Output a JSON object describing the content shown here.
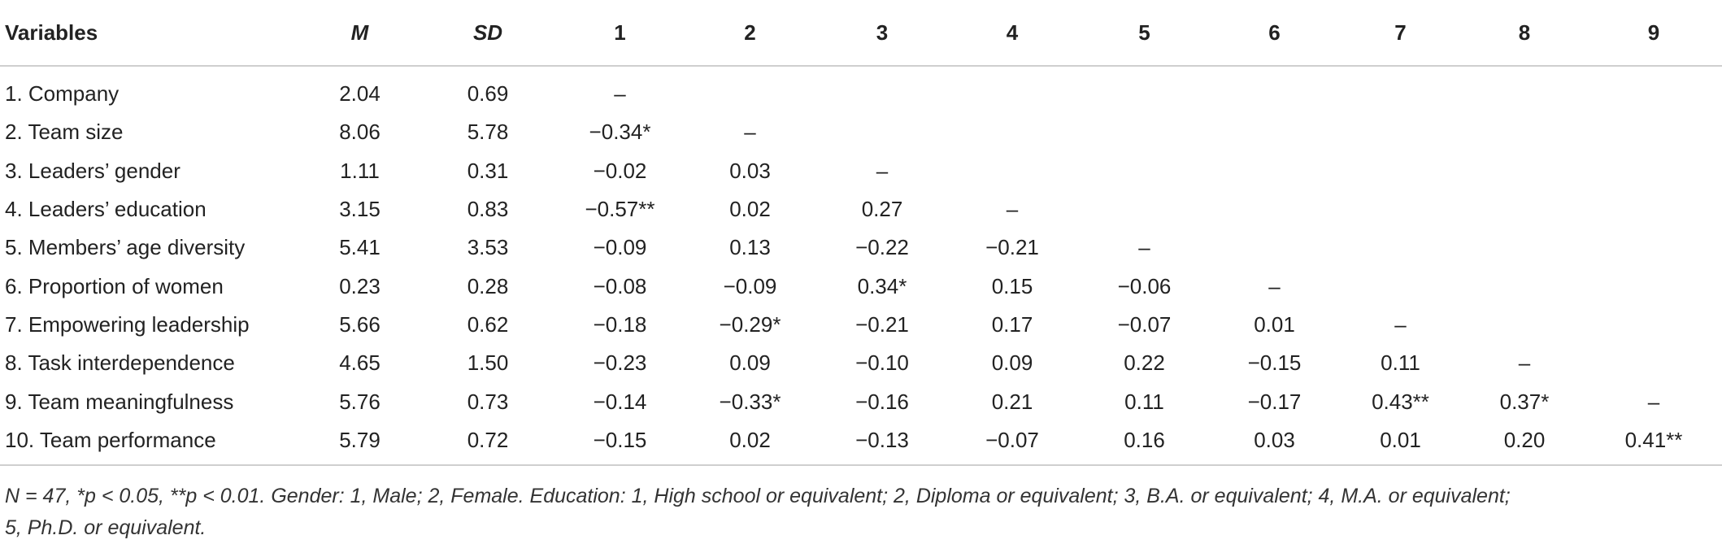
{
  "table": {
    "headers": [
      "Variables",
      "M",
      "SD",
      "1",
      "2",
      "3",
      "4",
      "5",
      "6",
      "7",
      "8",
      "9"
    ],
    "rows": [
      [
        "1. Company",
        "2.04",
        "0.69",
        "–",
        "",
        "",
        "",
        "",
        "",
        "",
        "",
        ""
      ],
      [
        "2. Team size",
        "8.06",
        "5.78",
        "−0.34*",
        "–",
        "",
        "",
        "",
        "",
        "",
        "",
        ""
      ],
      [
        "3. Leaders’ gender",
        "1.11",
        "0.31",
        "−0.02",
        "0.03",
        "–",
        "",
        "",
        "",
        "",
        "",
        ""
      ],
      [
        "4. Leaders’ education",
        "3.15",
        "0.83",
        "−0.57**",
        "0.02",
        "0.27",
        "–",
        "",
        "",
        "",
        "",
        ""
      ],
      [
        "5. Members’ age diversity",
        "5.41",
        "3.53",
        "−0.09",
        "0.13",
        "−0.22",
        "−0.21",
        "–",
        "",
        "",
        "",
        ""
      ],
      [
        "6. Proportion of women",
        "0.23",
        "0.28",
        "−0.08",
        "−0.09",
        "0.34*",
        "0.15",
        "−0.06",
        "–",
        "",
        "",
        ""
      ],
      [
        "7. Empowering leadership",
        "5.66",
        "0.62",
        "−0.18",
        "−0.29*",
        "−0.21",
        "0.17",
        "−0.07",
        "0.01",
        "–",
        "",
        ""
      ],
      [
        "8. Task interdependence",
        "4.65",
        "1.50",
        "−0.23",
        "0.09",
        "−0.10",
        "0.09",
        "0.22",
        "−0.15",
        "0.11",
        "–",
        ""
      ],
      [
        "9. Team meaningfulness",
        "5.76",
        "0.73",
        "−0.14",
        "−0.33*",
        "−0.16",
        "0.21",
        "0.11",
        "−0.17",
        "0.43**",
        "0.37*",
        "–"
      ],
      [
        "10. Team performance",
        "5.79",
        "0.72",
        "−0.15",
        "0.02",
        "−0.13",
        "−0.07",
        "0.16",
        "0.03",
        "0.01",
        "0.20",
        "0.41**"
      ]
    ]
  },
  "note": {
    "line1": "N = 47, *p < 0.05, **p < 0.01. Gender: 1, Male; 2, Female. Education: 1, High school or equivalent; 2, Diploma or equivalent; 3, B.A. or equivalent; 4, M.A. or equivalent;",
    "line2": "5, Ph.D. or equivalent."
  }
}
